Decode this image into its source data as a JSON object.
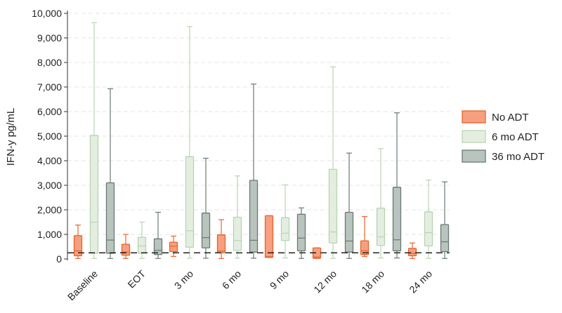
{
  "chart_data": {
    "type": "boxplot",
    "title": "",
    "xlabel": "",
    "ylabel": "IFN-y pg/mL",
    "ylim": [
      0,
      10000
    ],
    "yticks": [
      0,
      1000,
      2000,
      3000,
      4000,
      5000,
      6000,
      7000,
      8000,
      9000,
      10000
    ],
    "ytick_labels": [
      "0",
      "1,000",
      "2,000",
      "3,000",
      "4,000",
      "5,000",
      "6,000",
      "7,000",
      "8,000",
      "9,000",
      "10,000"
    ],
    "categories": [
      "Baseline",
      "EOT",
      "3 mo",
      "6 mo",
      "9 mo",
      "12 mo",
      "18 mo",
      "24 mo"
    ],
    "reference_line": 250,
    "grid": true,
    "legend_position": "right",
    "series": [
      {
        "name": "No ADT",
        "fill": "#f7a07f",
        "stroke": "#e8632e",
        "boxes": [
          {
            "min": 20,
            "q1": 130,
            "median": 330,
            "q3": 950,
            "max": 1380
          },
          {
            "min": 20,
            "q1": 150,
            "median": 280,
            "q3": 600,
            "max": 1000
          },
          {
            "min": 100,
            "q1": 300,
            "median": 520,
            "q3": 680,
            "max": 930
          },
          {
            "min": 20,
            "q1": 250,
            "median": 320,
            "q3": 980,
            "max": 1600
          },
          {
            "min": 60,
            "q1": 60,
            "median": 90,
            "q3": 1760,
            "max": 1760
          },
          {
            "min": 20,
            "q1": 30,
            "median": 80,
            "q3": 450,
            "max": 450
          },
          {
            "min": 100,
            "q1": 180,
            "median": 330,
            "q3": 740,
            "max": 1730
          },
          {
            "min": 20,
            "q1": 130,
            "median": 230,
            "q3": 430,
            "max": 650
          }
        ]
      },
      {
        "name": "6 mo ADT",
        "fill": "#e3eee0",
        "stroke": "#b9d4b3",
        "boxes": [
          {
            "min": 20,
            "q1": 230,
            "median": 1500,
            "q3": 5030,
            "max": 9620
          },
          {
            "min": 20,
            "q1": 230,
            "median": 530,
            "q3": 880,
            "max": 1500
          },
          {
            "min": 30,
            "q1": 480,
            "median": 1150,
            "q3": 4170,
            "max": 9460
          },
          {
            "min": 30,
            "q1": 350,
            "median": 750,
            "q3": 1700,
            "max": 3380
          },
          {
            "min": 40,
            "q1": 750,
            "median": 1050,
            "q3": 1680,
            "max": 3020
          },
          {
            "min": 20,
            "q1": 650,
            "median": 1100,
            "q3": 3650,
            "max": 7820
          },
          {
            "min": 40,
            "q1": 550,
            "median": 900,
            "q3": 2070,
            "max": 4490
          },
          {
            "min": 20,
            "q1": 530,
            "median": 1070,
            "q3": 1920,
            "max": 3210
          }
        ]
      },
      {
        "name": "36 mo ADT",
        "fill": "#b8c4bd",
        "stroke": "#6a7a73",
        "boxes": [
          {
            "min": 20,
            "q1": 230,
            "median": 770,
            "q3": 3100,
            "max": 6930
          },
          {
            "min": 20,
            "q1": 180,
            "median": 350,
            "q3": 820,
            "max": 1900
          },
          {
            "min": 30,
            "q1": 450,
            "median": 870,
            "q3": 1870,
            "max": 4100
          },
          {
            "min": 30,
            "q1": 280,
            "median": 760,
            "q3": 3200,
            "max": 7120
          },
          {
            "min": 20,
            "q1": 330,
            "median": 850,
            "q3": 1820,
            "max": 2080
          },
          {
            "min": 20,
            "q1": 280,
            "median": 730,
            "q3": 1900,
            "max": 4310
          },
          {
            "min": 40,
            "q1": 330,
            "median": 780,
            "q3": 2920,
            "max": 5950
          },
          {
            "min": 20,
            "q1": 300,
            "median": 700,
            "q3": 1400,
            "max": 3140
          }
        ]
      }
    ]
  }
}
